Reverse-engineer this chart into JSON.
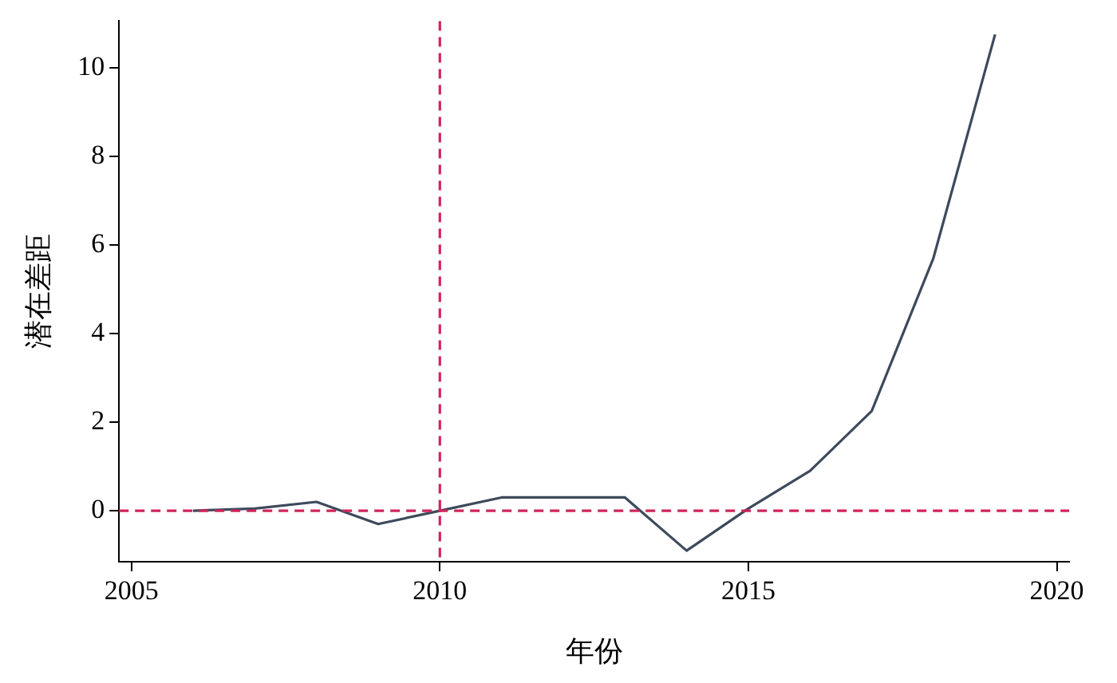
{
  "chart_data": {
    "type": "line",
    "xlabel": "年份",
    "ylabel": "潜在差距",
    "x": [
      2006,
      2007,
      2008,
      2009,
      2010,
      2011,
      2012,
      2013,
      2014,
      2015,
      2016,
      2017,
      2018,
      2019
    ],
    "series": [
      {
        "color": "#3d4a5c",
        "values": [
          0,
          0.05,
          0.2,
          -0.3,
          0,
          0.3,
          0.3,
          0.3,
          -0.9,
          0.05,
          0.9,
          2.25,
          5.7,
          10.75
        ]
      }
    ],
    "xlim": [
      2004.8,
      2020.2
    ],
    "xticks": [
      2005,
      2010,
      2015,
      2020
    ],
    "ylim": [
      -1.15,
      11.05
    ],
    "yticks": [
      0,
      2,
      4,
      6,
      8,
      10
    ],
    "ref_lines": [
      {
        "axis": "y",
        "value": 0,
        "color": "#d0245a",
        "line_style": "dashed"
      },
      {
        "axis": "x",
        "value": 2010,
        "color": "#d0245a",
        "line_style": "dashed"
      }
    ],
    "grid": false,
    "legend": false,
    "marker": "none",
    "line_style": "solid"
  }
}
